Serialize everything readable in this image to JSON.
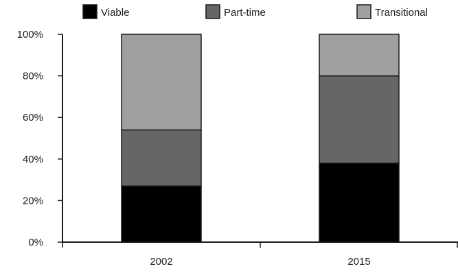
{
  "chart_data": {
    "type": "bar",
    "stacked": true,
    "normalized_percent": true,
    "categories": [
      "2002",
      "2015"
    ],
    "series": [
      {
        "name": "Viable",
        "values": [
          27,
          38
        ],
        "color": "#000000"
      },
      {
        "name": "Part-time",
        "values": [
          27,
          42
        ],
        "color": "#666666"
      },
      {
        "name": "Transitional",
        "values": [
          46,
          20
        ],
        "color": "#a0a0a0"
      }
    ],
    "title": "",
    "xlabel": "",
    "ylabel": "",
    "ylim": [
      0,
      100
    ],
    "yticks": [
      "0%",
      "20%",
      "40%",
      "60%",
      "80%",
      "100%"
    ],
    "legend": "top",
    "grid": false
  }
}
